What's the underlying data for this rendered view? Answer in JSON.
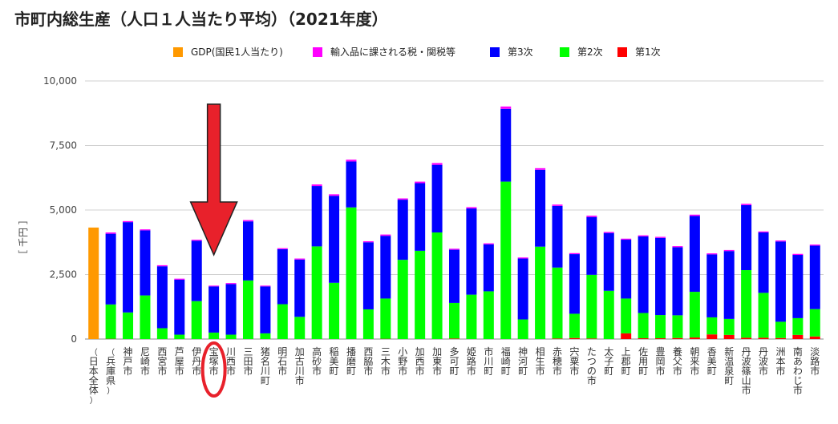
{
  "page": {
    "title": "市町内総生産（人口１人当たり平均）（2021年度）"
  },
  "colors": {
    "gdp": "#ff9900",
    "tax": "#ff00ff",
    "tertiary": "#0000ff",
    "secondary": "#00ff00",
    "primary": "#ff0000",
    "annotation": "#e8212b"
  },
  "chart_data": {
    "type": "bar",
    "stacked": true,
    "ylabel": "［ 千円 ］",
    "ylim": [
      0,
      10000
    ],
    "yticks": [
      "0",
      "2,500",
      "5,000",
      "7,500",
      "10,000"
    ],
    "ytick_values": [
      0,
      2500,
      5000,
      7500,
      10000
    ],
    "legend": [
      {
        "key": "gdp",
        "label": "GDP(国民1人当たり)"
      },
      {
        "key": "tax",
        "label": "輸入品に課される税・関税等"
      },
      {
        "key": "tertiary",
        "label": "第3次"
      },
      {
        "key": "secondary",
        "label": "第2次"
      },
      {
        "key": "primary",
        "label": "第1次"
      }
    ],
    "categories": [
      "（日本全体）",
      "（兵庫県）",
      "神戸市",
      "尼崎市",
      "西宮市",
      "芦屋市",
      "伊丹市",
      "宝塚市",
      "川西市",
      "三田市",
      "猪名川町",
      "明石市",
      "加古川市",
      "高砂市",
      "稲美町",
      "播磨町",
      "西脇市",
      "三木市",
      "小野市",
      "加西市",
      "加東市",
      "多可町",
      "姫路市",
      "市川町",
      "福崎町",
      "神河町",
      "相生市",
      "赤穂市",
      "宍粟市",
      "たつの市",
      "太子町",
      "上郡町",
      "佐用町",
      "豊岡市",
      "養父市",
      "朝来市",
      "香美町",
      "新温泉町",
      "丹波篠山市",
      "丹波市",
      "洲本市",
      "南あわじ市",
      "淡路市"
    ],
    "series": [
      {
        "name": "第1次",
        "key": "primary",
        "values": [
          0,
          10,
          0,
          0,
          0,
          0,
          0,
          0,
          0,
          0,
          0,
          0,
          0,
          0,
          0,
          0,
          0,
          10,
          0,
          0,
          0,
          20,
          0,
          0,
          0,
          0,
          0,
          20,
          40,
          20,
          0,
          220,
          30,
          30,
          40,
          60,
          180,
          160,
          50,
          50,
          40,
          160,
          100
        ]
      },
      {
        "name": "第2次",
        "key": "secondary",
        "values": [
          0,
          1330,
          1030,
          1690,
          420,
          170,
          1470,
          250,
          170,
          2270,
          220,
          1350,
          860,
          3590,
          2180,
          5100,
          1150,
          1560,
          3070,
          3420,
          4130,
          1380,
          1720,
          1850,
          6100,
          760,
          3580,
          2750,
          940,
          2470,
          1870,
          1350,
          980,
          900,
          880,
          1770,
          660,
          620,
          2620,
          1740,
          630,
          650,
          1060
        ]
      },
      {
        "name": "第3次",
        "key": "tertiary",
        "values": [
          0,
          2740,
          3500,
          2520,
          2400,
          2130,
          2340,
          1790,
          1960,
          2290,
          1820,
          2130,
          2220,
          2340,
          3370,
          1780,
          2600,
          2430,
          2330,
          2620,
          2620,
          2060,
          3340,
          1820,
          2820,
          2360,
          2980,
          2390,
          2310,
          2240,
          2240,
          2280,
          2970,
          2990,
          2640,
          2940,
          2440,
          2630,
          2520,
          2340,
          3110,
          2450,
          2460
        ]
      },
      {
        "name": "輸入品に課される税・関税等",
        "key": "tax",
        "values": [
          0,
          50,
          40,
          40,
          40,
          40,
          40,
          30,
          40,
          50,
          30,
          40,
          40,
          60,
          60,
          70,
          40,
          50,
          50,
          60,
          70,
          40,
          50,
          40,
          90,
          40,
          60,
          50,
          40,
          50,
          40,
          40,
          40,
          40,
          40,
          50,
          40,
          40,
          50,
          40,
          40,
          40,
          40
        ]
      },
      {
        "name": "GDP(国民1人当たり)",
        "key": "gdp",
        "values": [
          4320,
          0,
          0,
          0,
          0,
          0,
          0,
          0,
          0,
          0,
          0,
          0,
          0,
          0,
          0,
          0,
          0,
          0,
          0,
          0,
          0,
          0,
          0,
          0,
          0,
          0,
          0,
          0,
          0,
          0,
          0,
          0,
          0,
          0,
          0,
          0,
          0,
          0,
          0,
          0,
          0,
          0,
          0
        ]
      }
    ],
    "highlight_category": "宝塚市",
    "grid": true,
    "legend_position": "top"
  }
}
